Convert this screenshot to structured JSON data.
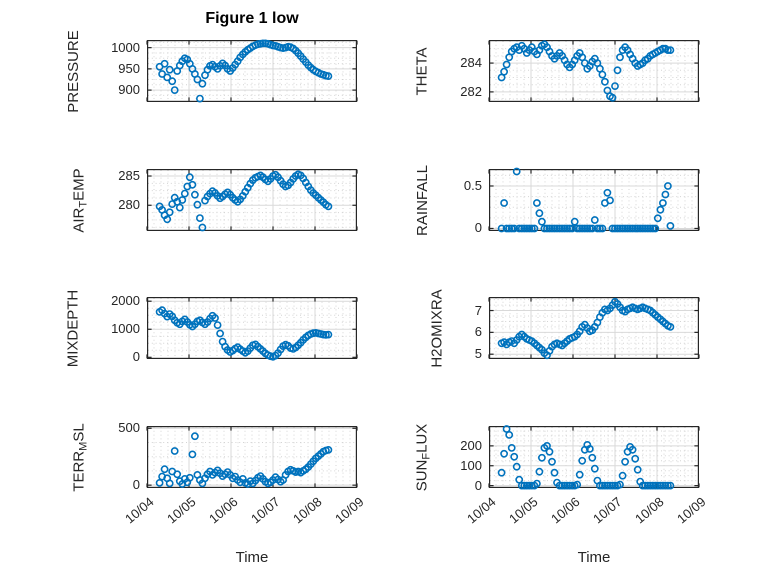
{
  "figure": {
    "colors": {
      "marker": "#0072BD",
      "axis": "#262626",
      "grid_major": "#d9d9d9",
      "grid_minor": "#d4d4d4"
    }
  },
  "chart_data": {
    "type": "scatter",
    "title": "Figure 1 low",
    "xlabel": "Time",
    "x_tick_labels": [
      "10/04",
      "10/05",
      "10/06",
      "10/07",
      "10/08",
      "10/09"
    ],
    "x_range_days": [
      0,
      5
    ],
    "x_note": "x values are days after 10/04",
    "x": [
      0.3,
      0.36,
      0.42,
      0.48,
      0.54,
      0.6,
      0.66,
      0.72,
      0.78,
      0.84,
      0.9,
      0.96,
      1.02,
      1.08,
      1.14,
      1.2,
      1.26,
      1.32,
      1.38,
      1.44,
      1.5,
      1.56,
      1.62,
      1.68,
      1.74,
      1.8,
      1.86,
      1.92,
      1.98,
      2.04,
      2.1,
      2.16,
      2.22,
      2.28,
      2.34,
      2.4,
      2.46,
      2.52,
      2.58,
      2.64,
      2.7,
      2.76,
      2.82,
      2.88,
      2.94,
      3.0,
      3.06,
      3.12,
      3.18,
      3.24,
      3.3,
      3.36,
      3.42,
      3.48,
      3.54,
      3.6,
      3.66,
      3.72,
      3.78,
      3.84,
      3.9,
      3.96,
      4.02,
      4.08,
      4.14,
      4.2,
      4.26,
      4.32
    ],
    "subplots": [
      {
        "id": "pressure",
        "row": 0,
        "col": 0,
        "ylabel": "PRESSURE",
        "ylabel_parts": [
          {
            "t": "PRESSURE"
          }
        ],
        "yticks": [
          900,
          950,
          1000
        ],
        "ylim": [
          872,
          1018
        ],
        "y": [
          955,
          938,
          962,
          930,
          948,
          921,
          900,
          945,
          958,
          968,
          975,
          972,
          962,
          950,
          938,
          925,
          880,
          915,
          935,
          948,
          957,
          960,
          955,
          950,
          957,
          963,
          958,
          950,
          945,
          952,
          960,
          968,
          977,
          984,
          990,
          995,
          999,
          1003,
          1006,
          1008,
          1009,
          1010,
          1010,
          1009,
          1007,
          1005,
          1004,
          1002,
          1000,
          999,
          1000,
          1002,
          1001,
          998,
          993,
          987,
          980,
          973,
          966,
          959,
          953,
          948,
          944,
          941,
          938,
          936,
          934,
          933
        ]
      },
      {
        "id": "theta",
        "row": 0,
        "col": 1,
        "ylabel": "THETA",
        "ylabel_parts": [
          {
            "t": "THETA"
          }
        ],
        "yticks": [
          282,
          284
        ],
        "ylim": [
          281.3,
          285.6
        ],
        "y": [
          283.0,
          283.4,
          283.9,
          284.4,
          284.8,
          285.0,
          285.1,
          284.9,
          285.2,
          285.0,
          284.7,
          284.9,
          285.1,
          284.8,
          284.6,
          284.9,
          285.2,
          285.3,
          285.1,
          284.8,
          284.5,
          284.3,
          284.5,
          284.7,
          284.5,
          284.2,
          283.9,
          283.7,
          283.9,
          284.2,
          284.5,
          284.7,
          284.4,
          284.0,
          283.6,
          283.8,
          284.1,
          284.3,
          284.0,
          283.6,
          283.2,
          282.7,
          282.1,
          281.7,
          281.6,
          282.4,
          283.5,
          284.4,
          284.9,
          285.1,
          284.9,
          284.6,
          284.3,
          284.0,
          283.8,
          283.9,
          284.0,
          284.2,
          284.3,
          284.5,
          284.6,
          284.7,
          284.8,
          284.9,
          285.0,
          285.0,
          284.9,
          284.9
        ]
      },
      {
        "id": "air-temp",
        "row": 1,
        "col": 0,
        "ylabel": "AIR_TEMP",
        "ylabel_parts": [
          {
            "t": "AIR"
          },
          {
            "t": "T",
            "sub": true
          },
          {
            "t": "EMP"
          }
        ],
        "yticks": [
          280,
          285
        ],
        "ylim": [
          275.6,
          286.2
        ],
        "y": [
          279.8,
          279.2,
          278.3,
          277.6,
          278.8,
          280.2,
          281.3,
          280.6,
          279.6,
          280.9,
          282.0,
          283.2,
          284.8,
          283.5,
          281.8,
          280.1,
          277.8,
          276.2,
          280.8,
          281.5,
          282.0,
          282.4,
          282.1,
          281.6,
          281.2,
          281.5,
          281.9,
          282.2,
          281.8,
          281.3,
          280.9,
          280.6,
          281.0,
          281.6,
          282.3,
          283.0,
          283.7,
          284.3,
          284.7,
          284.9,
          285.1,
          284.8,
          284.4,
          284.1,
          284.5,
          285.0,
          285.2,
          284.8,
          284.2,
          283.6,
          283.2,
          283.4,
          283.9,
          284.5,
          285.0,
          285.3,
          285.1,
          284.6,
          283.9,
          283.2,
          282.6,
          282.1,
          281.7,
          281.3,
          280.9,
          280.5,
          280.1,
          279.8
        ]
      },
      {
        "id": "rainfall",
        "row": 1,
        "col": 1,
        "ylabel": "RAINFALL",
        "ylabel_parts": [
          {
            "t": "RAINFALL"
          }
        ],
        "yticks": [
          0,
          0.5
        ],
        "ylim": [
          -0.03,
          0.7
        ],
        "y": [
          0,
          0.3,
          0,
          0,
          0,
          0,
          0.67,
          0,
          0,
          0,
          0,
          0,
          0,
          0,
          0.3,
          0.18,
          0.08,
          0,
          0,
          0,
          0,
          0,
          0,
          0,
          0,
          0,
          0,
          0,
          0,
          0.08,
          0,
          0,
          0,
          0,
          0,
          0,
          0,
          0.1,
          0,
          0,
          0,
          0.3,
          0.42,
          0.33,
          0,
          0,
          0,
          0,
          0,
          0,
          0,
          0,
          0,
          0,
          0,
          0,
          0,
          0,
          0,
          0,
          0,
          0,
          0.12,
          0.22,
          0.3,
          0.4,
          0.5,
          0.03
        ]
      },
      {
        "id": "mixdepth",
        "row": 2,
        "col": 0,
        "ylabel": "MIXDEPTH",
        "ylabel_parts": [
          {
            "t": "MIXDEPTH"
          }
        ],
        "yticks": [
          0,
          1000,
          2000
        ],
        "ylim": [
          -60,
          2150
        ],
        "y": [
          1620,
          1680,
          1560,
          1450,
          1540,
          1460,
          1320,
          1230,
          1180,
          1280,
          1350,
          1260,
          1160,
          1100,
          1180,
          1280,
          1320,
          1240,
          1180,
          1260,
          1380,
          1480,
          1400,
          1150,
          850,
          560,
          380,
          260,
          190,
          240,
          310,
          360,
          290,
          220,
          160,
          220,
          330,
          430,
          460,
          380,
          300,
          220,
          140,
          80,
          40,
          20,
          60,
          150,
          280,
          400,
          450,
          410,
          330,
          300,
          350,
          430,
          520,
          620,
          710,
          780,
          830,
          860,
          870,
          850,
          830,
          810,
          800,
          810
        ]
      },
      {
        "id": "h2omixra",
        "row": 2,
        "col": 1,
        "ylabel": "H2OMIXRA",
        "ylabel_parts": [
          {
            "t": "H2OMIXRA"
          }
        ],
        "yticks": [
          5,
          6,
          7
        ],
        "ylim": [
          4.78,
          7.62
        ],
        "y": [
          5.5,
          5.55,
          5.45,
          5.55,
          5.6,
          5.5,
          5.65,
          5.8,
          5.9,
          5.8,
          5.7,
          5.65,
          5.6,
          5.5,
          5.4,
          5.3,
          5.2,
          5.05,
          4.95,
          5.15,
          5.35,
          5.45,
          5.5,
          5.45,
          5.4,
          5.5,
          5.6,
          5.7,
          5.75,
          5.8,
          5.9,
          6.05,
          6.25,
          6.35,
          6.2,
          6.05,
          6.1,
          6.25,
          6.45,
          6.7,
          6.9,
          7.05,
          7.0,
          7.1,
          7.25,
          7.4,
          7.3,
          7.15,
          7.0,
          6.95,
          7.05,
          7.1,
          7.15,
          7.1,
          7.05,
          7.1,
          7.15,
          7.1,
          7.05,
          7.0,
          6.9,
          6.8,
          6.7,
          6.6,
          6.5,
          6.4,
          6.3,
          6.25
        ]
      },
      {
        "id": "terr-msl",
        "row": 3,
        "col": 0,
        "ylabel": "TERR_MSL",
        "ylabel_parts": [
          {
            "t": "TERR"
          },
          {
            "t": "M",
            "sub": true
          },
          {
            "t": "SL"
          }
        ],
        "yticks": [
          0,
          500
        ],
        "ylim": [
          -25,
          520
        ],
        "y": [
          20,
          75,
          140,
          60,
          15,
          120,
          300,
          95,
          35,
          10,
          55,
          25,
          65,
          270,
          430,
          90,
          45,
          15,
          60,
          95,
          120,
          90,
          110,
          130,
          105,
          80,
          95,
          115,
          90,
          60,
          75,
          45,
          25,
          55,
          20,
          10,
          35,
          15,
          40,
          65,
          80,
          55,
          30,
          15,
          25,
          45,
          70,
          50,
          30,
          45,
          90,
          120,
          135,
          125,
          115,
          120,
          110,
          125,
          140,
          160,
          185,
          210,
          235,
          255,
          275,
          295,
          305,
          310
        ]
      },
      {
        "id": "sun-flux",
        "row": 3,
        "col": 1,
        "ylabel": "SUN_FLUX",
        "ylabel_parts": [
          {
            "t": "SUN"
          },
          {
            "t": "F",
            "sub": true
          },
          {
            "t": "LUX"
          }
        ],
        "yticks": [
          0,
          100,
          200
        ],
        "ylim": [
          -12,
          300
        ],
        "y": [
          65,
          160,
          285,
          255,
          190,
          145,
          95,
          30,
          0,
          0,
          0,
          0,
          0,
          0,
          10,
          70,
          140,
          190,
          200,
          170,
          120,
          65,
          15,
          0,
          0,
          0,
          0,
          0,
          0,
          0,
          5,
          55,
          125,
          180,
          205,
          185,
          140,
          85,
          25,
          0,
          0,
          0,
          0,
          0,
          0,
          0,
          0,
          5,
          50,
          120,
          170,
          195,
          180,
          135,
          80,
          20,
          0,
          0,
          0,
          0,
          0,
          0,
          0,
          0,
          0,
          0,
          0,
          0
        ]
      }
    ]
  }
}
